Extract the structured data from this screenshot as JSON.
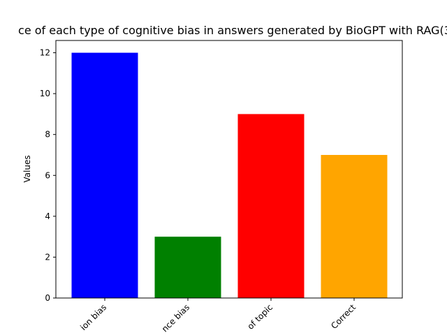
{
  "chart_data": {
    "type": "bar",
    "title": "ce of each type of cognitive bias in answers generated by BioGPT with RAG(3",
    "ylabel": "Values",
    "xlabel": "",
    "categories": [
      "ion bias",
      "nce bias",
      "of topic",
      "Correct"
    ],
    "values": [
      12,
      3,
      9,
      7
    ],
    "colors": [
      "#0000ff",
      "#008000",
      "#ff0000",
      "#ffa500"
    ],
    "ylim": [
      0,
      12.6
    ],
    "yticks": [
      0,
      2,
      4,
      6,
      8,
      10,
      12
    ],
    "ytick_labels": [
      "0",
      "2",
      "4",
      "6",
      "8",
      "10",
      "12"
    ],
    "grid": false,
    "legend": "none"
  }
}
